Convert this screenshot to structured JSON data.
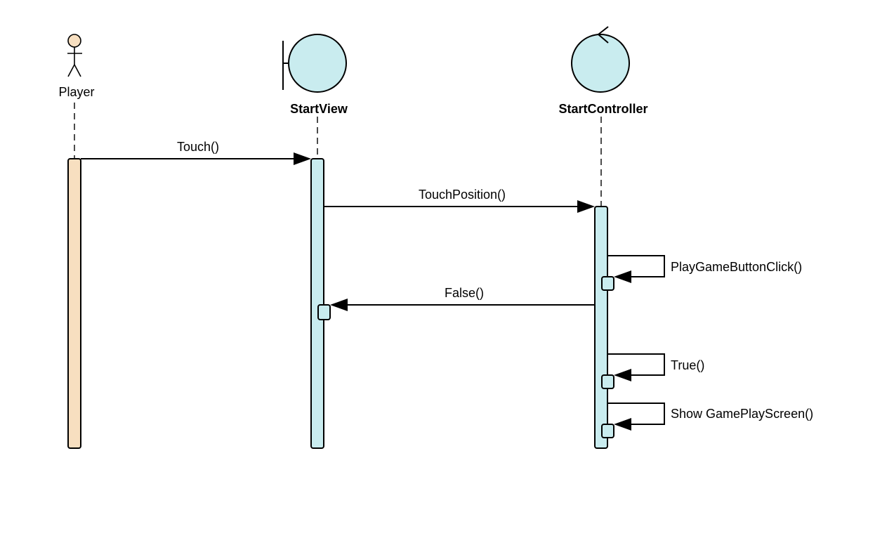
{
  "diagram": {
    "participants": [
      {
        "id": "player",
        "name": "Player",
        "kind": "actor"
      },
      {
        "id": "startview",
        "name": "StartView",
        "kind": "boundary"
      },
      {
        "id": "startcontroller",
        "name": "StartController",
        "kind": "control"
      }
    ],
    "messages": [
      {
        "label": "Touch()",
        "from": "player",
        "to": "startview",
        "type": "call"
      },
      {
        "label": "TouchPosition()",
        "from": "startview",
        "to": "startcontroller",
        "type": "call"
      },
      {
        "label": "PlayGameButtonClick()",
        "from": "startcontroller",
        "to": "startcontroller",
        "type": "self"
      },
      {
        "label": "False()",
        "from": "startcontroller",
        "to": "startview",
        "type": "call"
      },
      {
        "label": "True()",
        "from": "startcontroller",
        "to": "startcontroller",
        "type": "self"
      },
      {
        "label": "Show GamePlayScreen()",
        "from": "startcontroller",
        "to": "startcontroller",
        "type": "self"
      }
    ],
    "colors": {
      "actor_fill": "#f7dfc0",
      "object_fill": "#c9ecef",
      "stroke": "#000000"
    }
  }
}
